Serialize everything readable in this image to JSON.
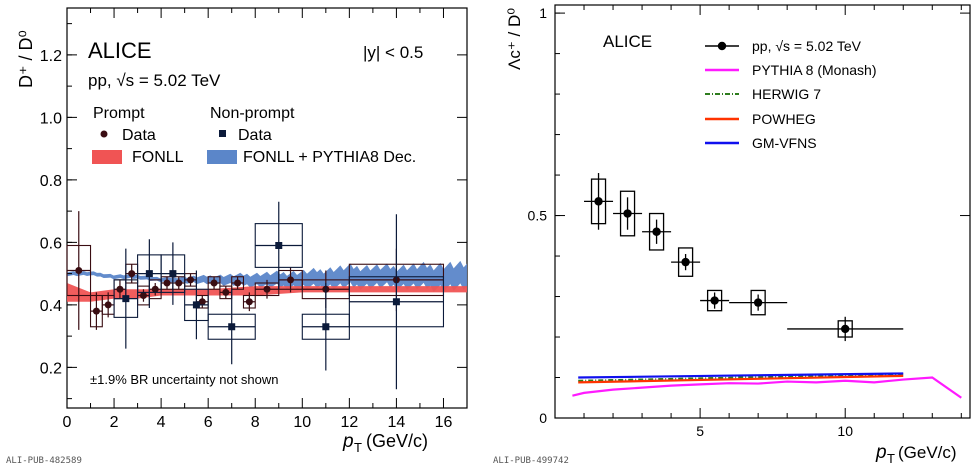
{
  "colors": {
    "data": "#3a0d12",
    "nonprompt_data": "#0b1a3a",
    "fonll": "#f05454",
    "fonll_pythia": "#5b86c9",
    "pythia8": "#ff1aff",
    "herwig7": "#2e7d1e",
    "powheg": "#ff3300",
    "gmvfns": "#1010ee"
  },
  "chart_data": [
    {
      "type": "scatter",
      "panel": "left",
      "experiment": "ALICE",
      "system": "pp, √s = 5.02 TeV",
      "rapidity": "|y| < 0.5",
      "xlabel_main": "p",
      "xlabel_sub": "T",
      "xlabel_unit": "(GeV/c)",
      "ylabel": "D⁺ / D⁰",
      "xlim": [
        0,
        17
      ],
      "ylim": [
        0.07,
        1.35
      ],
      "xticks": [
        0,
        2,
        4,
        6,
        8,
        10,
        12,
        14,
        16
      ],
      "yticks": [
        0.2,
        0.4,
        0.6,
        0.8,
        1.0,
        1.2
      ],
      "ytick_labels": [
        "0.2",
        "0.4",
        "0.6",
        "0.8",
        "1.0",
        "1.2"
      ],
      "legend": {
        "prompt_header": "Prompt",
        "nonprompt_header": "Non-prompt",
        "prompt_data": "Data",
        "prompt_model": "FONLL",
        "nonprompt_data": "Data",
        "nonprompt_model": "FONLL + PYTHIA8 Dec."
      },
      "note": "±1.9% BR uncertainty not shown",
      "footer": "ALI-PUB-482589",
      "series": [
        {
          "name": "Prompt Data",
          "x": [
            0.5,
            1.25,
            1.75,
            2.25,
            2.75,
            3.25,
            3.75,
            4.25,
            4.75,
            5.25,
            5.75,
            6.25,
            6.75,
            7.25,
            7.75,
            8.5,
            9.5,
            11,
            14
          ],
          "y": [
            0.51,
            0.38,
            0.4,
            0.45,
            0.5,
            0.43,
            0.45,
            0.47,
            0.47,
            0.48,
            0.41,
            0.47,
            0.44,
            0.47,
            0.41,
            0.45,
            0.48,
            0.45,
            0.48
          ],
          "xerr": [
            0.5,
            0.25,
            0.25,
            0.25,
            0.25,
            0.25,
            0.25,
            0.25,
            0.25,
            0.25,
            0.25,
            0.25,
            0.25,
            0.25,
            0.25,
            0.5,
            0.5,
            1,
            2
          ],
          "yerr_stat": [
            0.19,
            0.06,
            0.04,
            0.03,
            0.03,
            0.02,
            0.02,
            0.02,
            0.02,
            0.02,
            0.02,
            0.02,
            0.02,
            0.02,
            0.03,
            0.03,
            0.04,
            0.06,
            0.1
          ],
          "yerr_sys": [
            0.08,
            0.05,
            0.03,
            0.03,
            0.03,
            0.03,
            0.03,
            0.02,
            0.02,
            0.02,
            0.02,
            0.02,
            0.02,
            0.02,
            0.02,
            0.02,
            0.03,
            0.03,
            0.05
          ]
        },
        {
          "name": "Non-prompt Data",
          "x": [
            2.5,
            3.5,
            4.5,
            5.5,
            7,
            9,
            11,
            14
          ],
          "y": [
            0.42,
            0.5,
            0.5,
            0.4,
            0.33,
            0.59,
            0.33,
            0.41
          ],
          "xerr": [
            0.5,
            0.5,
            0.5,
            0.5,
            1,
            1,
            1,
            2
          ],
          "yerr_stat": [
            0.16,
            0.11,
            0.1,
            0.11,
            0.12,
            0.14,
            0.14,
            0.28
          ],
          "yerr_sys": [
            0.06,
            0.06,
            0.06,
            0.05,
            0.04,
            0.07,
            0.04,
            0.08
          ]
        }
      ],
      "models": [
        {
          "name": "FONLL",
          "x": [
            0,
            1,
            2,
            3,
            4,
            6,
            8,
            10,
            12,
            14,
            16,
            17
          ],
          "y_low": [
            0.41,
            0.41,
            0.42,
            0.42,
            0.43,
            0.43,
            0.43,
            0.44,
            0.44,
            0.44,
            0.44,
            0.44
          ],
          "y_high": [
            0.47,
            0.44,
            0.45,
            0.45,
            0.45,
            0.45,
            0.46,
            0.46,
            0.46,
            0.46,
            0.46,
            0.46
          ]
        },
        {
          "name": "FONLL + PYTHIA8 Dec.",
          "x": [
            0,
            1,
            2,
            3,
            4,
            6,
            8,
            10,
            12,
            14,
            16,
            17
          ],
          "y": [
            0.5,
            0.5,
            0.49,
            0.49,
            0.48,
            0.48,
            0.48,
            0.48,
            0.49,
            0.49,
            0.49,
            0.49
          ],
          "spread": [
            0.01,
            0.01,
            0.01,
            0.01,
            0.01,
            0.02,
            0.03,
            0.04,
            0.05,
            0.05,
            0.06,
            0.06
          ]
        }
      ]
    },
    {
      "type": "scatter",
      "panel": "right",
      "experiment": "ALICE",
      "xlabel_main": "p",
      "xlabel_sub": "T",
      "xlabel_unit": "(GeV/c)",
      "ylabel": "Λc⁺ / D⁰",
      "xlim": [
        0,
        14.3
      ],
      "ylim": [
        0,
        1.02
      ],
      "xticks": [
        5,
        10
      ],
      "yticks": [
        0,
        0.5,
        1
      ],
      "ytick_labels": [
        "0",
        "0.5",
        "1"
      ],
      "legend": {
        "data": "pp, √s = 5.02 TeV",
        "pythia": "PYTHIA 8 (Monash)",
        "herwig": "HERWIG 7",
        "powheg": "POWHEG",
        "gmvfns": "GM-VFNS"
      },
      "footer": "ALI-PUB-499742",
      "series": [
        {
          "name": "pp, √s = 5.02 TeV",
          "x": [
            1.5,
            2.5,
            3.5,
            4.5,
            5.5,
            7,
            10
          ],
          "y": [
            0.535,
            0.505,
            0.46,
            0.385,
            0.29,
            0.285,
            0.22
          ],
          "xerr": [
            0.5,
            0.5,
            0.5,
            0.5,
            0.5,
            1,
            2
          ],
          "yerr_stat": [
            0.07,
            0.04,
            0.03,
            0.02,
            0.02,
            0.02,
            0.03
          ],
          "yerr_sys": [
            0.055,
            0.055,
            0.045,
            0.035,
            0.025,
            0.03,
            0.02
          ]
        }
      ],
      "models": [
        {
          "name": "PYTHIA 8 (Monash)",
          "x": [
            0,
            1,
            2,
            3,
            4,
            5,
            6,
            7,
            8,
            9,
            10,
            11,
            12,
            13,
            14
          ],
          "y": [
            0.055,
            0.062,
            0.07,
            0.075,
            0.08,
            0.083,
            0.086,
            0.085,
            0.09,
            0.088,
            0.092,
            0.088,
            0.095,
            0.1,
            0.05
          ]
        },
        {
          "name": "HERWIG 7",
          "x": [
            0,
            12
          ],
          "y": [
            0.092,
            0.108
          ]
        },
        {
          "name": "POWHEG",
          "x": [
            0,
            12
          ],
          "y": [
            0.088,
            0.104
          ]
        },
        {
          "name": "GM-VFNS",
          "x": [
            0,
            12
          ],
          "y": [
            0.1,
            0.11
          ]
        }
      ]
    }
  ]
}
